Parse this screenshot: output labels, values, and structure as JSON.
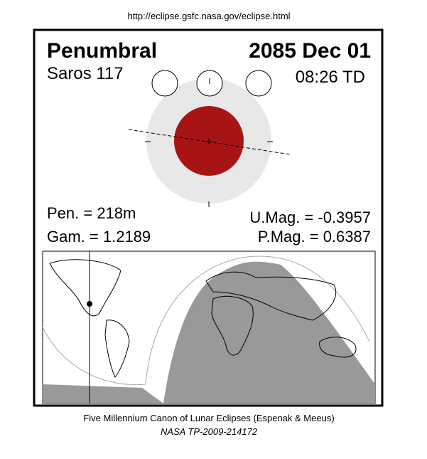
{
  "header": {
    "url": "http://eclipse.gsfc.nasa.gov/eclipse.html"
  },
  "eclipse": {
    "type": "Penumbral",
    "date": "2085 Dec 01",
    "saros": "Saros 117",
    "time": "08:26 TD"
  },
  "stats": {
    "pen": "Pen. = 218m",
    "gam": "Gam. = 1.2189",
    "umag": "U.Mag. = -0.3957",
    "pmag": "P.Mag. = 0.6387"
  },
  "footer": {
    "canon": "Five Millennium Canon of Lunar Eclipses (Espenak & Meeus)",
    "reference": "NASA TP-2009-214172"
  }
}
